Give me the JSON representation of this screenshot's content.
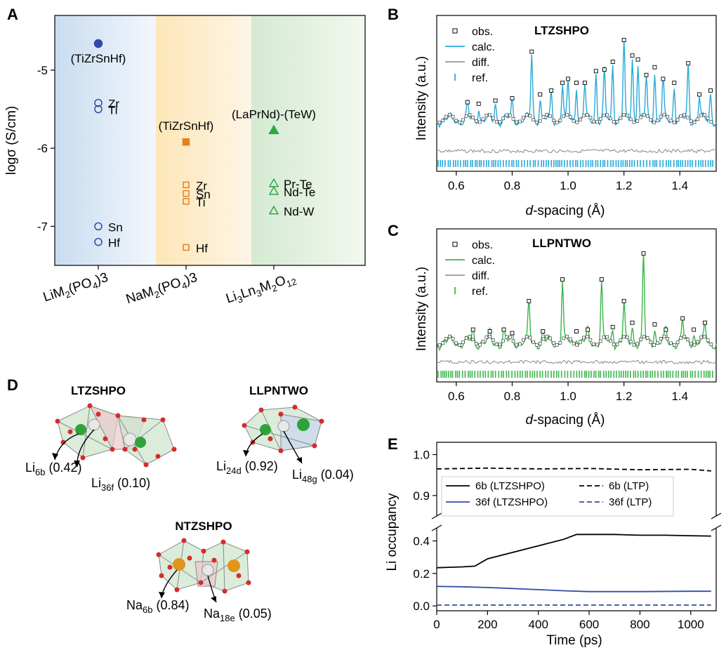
{
  "panel_letters": {
    "a": "A",
    "b": "B",
    "c": "C",
    "d": "D",
    "e": "E"
  },
  "colors": {
    "blue": "#2f4da6",
    "orange": "#e87f1f",
    "green": "#2ca845",
    "cyan": "#27a9d8",
    "lightgreen": "#3bb54a",
    "gray": "#8c8c8c",
    "red": "#d83a3a"
  },
  "chart_data": [
    {
      "panel": "A",
      "type": "scatter",
      "ylabel": "logσ (S/cm)",
      "yticks": [
        "-5",
        "-6",
        "-7"
      ],
      "ylim": [
        -7.5,
        -4.3
      ],
      "categories": [
        "LiM2(PO4)3",
        "NaM2(PO4)3",
        "Li3Ln3M2O12"
      ],
      "category_labels": [
        {
          "main": "LiM",
          "sub1": "2",
          "mid": "(PO",
          "sub2": "4",
          "end": ")3"
        },
        {
          "main": "NaM",
          "sub1": "2",
          "mid": "(PO",
          "sub2": "4",
          "end": ")3"
        },
        {
          "main": "Li",
          "sub1": "3",
          "mid": "Ln",
          "sub2": "3",
          "mid2": "M",
          "sub3": "2",
          "mid3": "O",
          "sub4": "12"
        }
      ],
      "points": [
        {
          "category": 0,
          "value": -4.66,
          "label": "(TiZrSnHf)",
          "filled": true,
          "series": "Li"
        },
        {
          "category": 0,
          "value": -5.42,
          "label": "Zr",
          "filled": false,
          "series": "Li"
        },
        {
          "category": 0,
          "value": -5.5,
          "label": "Ti",
          "filled": false,
          "series": "Li"
        },
        {
          "category": 0,
          "value": -7.0,
          "label": "Sn",
          "filled": false,
          "series": "Li"
        },
        {
          "category": 0,
          "value": -7.2,
          "label": "Hf",
          "filled": false,
          "series": "Li"
        },
        {
          "category": 1,
          "value": -5.92,
          "label": "(TiZrSnHf)",
          "filled": true,
          "series": "Na"
        },
        {
          "category": 1,
          "value": -6.47,
          "label": "Zr",
          "filled": false,
          "series": "Na"
        },
        {
          "category": 1,
          "value": -6.58,
          "label": "Sn",
          "filled": false,
          "series": "Na"
        },
        {
          "category": 1,
          "value": -6.68,
          "label": "Ti",
          "filled": false,
          "series": "Na"
        },
        {
          "category": 1,
          "value": -7.27,
          "label": "Hf",
          "filled": false,
          "series": "Na"
        },
        {
          "category": 2,
          "value": -5.77,
          "label": "(LaPrNd)-(TeW)",
          "filled": true,
          "series": "garnet"
        },
        {
          "category": 2,
          "value": -6.45,
          "label": "Pr-Te",
          "filled": false,
          "series": "garnet"
        },
        {
          "category": 2,
          "value": -6.55,
          "label": "Nd-Te",
          "filled": false,
          "series": "garnet"
        },
        {
          "category": 2,
          "value": -6.8,
          "label": "Nd-W",
          "filled": false,
          "series": "garnet"
        }
      ]
    },
    {
      "panel": "B",
      "type": "line",
      "title": "LTZSHPO",
      "xlabel_italic": "d",
      "xlabel_rest": "-spacing (Å)",
      "ylabel": "Intensity (a.u.)",
      "xlim": [
        0.53,
        1.53
      ],
      "xticks": [
        "0.6",
        "0.8",
        "1.0",
        "1.2",
        "1.4"
      ],
      "legend": [
        "obs.",
        "calc.",
        "diff.",
        "ref."
      ],
      "peaks": [
        [
          0.64,
          0.2
        ],
        [
          0.68,
          0.18
        ],
        [
          0.74,
          0.22
        ],
        [
          0.8,
          0.25
        ],
        [
          0.87,
          0.85
        ],
        [
          0.9,
          0.3
        ],
        [
          0.94,
          0.35
        ],
        [
          0.98,
          0.45
        ],
        [
          1.0,
          0.5
        ],
        [
          1.03,
          0.45
        ],
        [
          1.06,
          0.45
        ],
        [
          1.1,
          0.6
        ],
        [
          1.13,
          0.62
        ],
        [
          1.16,
          0.72
        ],
        [
          1.2,
          1.0
        ],
        [
          1.23,
          0.8
        ],
        [
          1.25,
          0.75
        ],
        [
          1.28,
          0.55
        ],
        [
          1.31,
          0.65
        ],
        [
          1.34,
          0.5
        ],
        [
          1.38,
          0.45
        ],
        [
          1.43,
          0.7
        ],
        [
          1.47,
          0.3
        ],
        [
          1.51,
          0.35
        ]
      ]
    },
    {
      "panel": "C",
      "type": "line",
      "title": "LLPNTWO",
      "xlabel_italic": "d",
      "xlabel_rest": "-spacing (Å)",
      "ylabel": "Intensity (a.u.)",
      "xlim": [
        0.53,
        1.53
      ],
      "xticks": [
        "0.6",
        "0.8",
        "1.0",
        "1.2",
        "1.4"
      ],
      "legend": [
        "obs.",
        "calc.",
        "diff.",
        "ref."
      ],
      "peaks": [
        [
          0.66,
          0.12
        ],
        [
          0.72,
          0.1
        ],
        [
          0.77,
          0.12
        ],
        [
          0.8,
          0.08
        ],
        [
          0.86,
          0.45
        ],
        [
          0.91,
          0.1
        ],
        [
          0.98,
          0.7
        ],
        [
          1.03,
          0.1
        ],
        [
          1.07,
          0.12
        ],
        [
          1.12,
          0.7
        ],
        [
          1.16,
          0.15
        ],
        [
          1.2,
          0.45
        ],
        [
          1.23,
          0.2
        ],
        [
          1.27,
          1.0
        ],
        [
          1.31,
          0.18
        ],
        [
          1.35,
          0.12
        ],
        [
          1.41,
          0.25
        ],
        [
          1.45,
          0.12
        ],
        [
          1.49,
          0.2
        ]
      ]
    },
    {
      "panel": "E",
      "type": "line",
      "xlabel": "Time (ps)",
      "ylabel": "Li occupancy",
      "xlim": [
        0,
        1100
      ],
      "xticks": [
        "0",
        "200",
        "400",
        "600",
        "800",
        "1000"
      ],
      "yticks_upper": [
        "1.0",
        "0.9"
      ],
      "yticks_lower": [
        "0.4",
        "0.2",
        "0.0"
      ],
      "series": [
        {
          "name": "6b (LTZSHPO)",
          "style": "solid",
          "color": "#000000",
          "x": [
            0,
            100,
            150,
            200,
            300,
            400,
            500,
            550,
            600,
            700,
            800,
            900,
            1000,
            1080
          ],
          "y": [
            0.235,
            0.24,
            0.245,
            0.29,
            0.33,
            0.37,
            0.41,
            0.44,
            0.44,
            0.44,
            0.435,
            0.435,
            0.432,
            0.43
          ]
        },
        {
          "name": "36f (LTZSHPO)",
          "style": "solid",
          "color": "#2f4da6",
          "x": [
            0,
            100,
            200,
            300,
            400,
            500,
            600,
            800,
            1000,
            1080
          ],
          "y": [
            0.12,
            0.118,
            0.113,
            0.107,
            0.1,
            0.093,
            0.088,
            0.088,
            0.09,
            0.09
          ]
        },
        {
          "name": "6b (LTP)",
          "style": "dashed",
          "color": "#000000",
          "x": [
            0,
            200,
            400,
            600,
            800,
            1000,
            1080
          ],
          "y": [
            0.965,
            0.967,
            0.965,
            0.966,
            0.963,
            0.964,
            0.96
          ]
        },
        {
          "name": "36f (LTP)",
          "style": "dashed",
          "color": "#2f4da6",
          "x": [
            0,
            1080
          ],
          "y": [
            0.005,
            0.005
          ]
        }
      ]
    }
  ],
  "panel_d": {
    "ltzshpo_title": "LTZSHPO",
    "llpntwo_title": "LLPNTWO",
    "ntzshpo_title": "NTZSHPO",
    "sites": [
      {
        "main": "Li",
        "sub": "6b",
        "value": " (0.42)"
      },
      {
        "main": "Li",
        "sub": "36f",
        "value": " (0.10)"
      },
      {
        "main": "Li",
        "sub": "24d",
        "value": " (0.92)"
      },
      {
        "main": "Li",
        "sub": "48g",
        "value": " (0.04)"
      },
      {
        "main": "Na",
        "sub": "6b",
        "value": " (0.84)"
      },
      {
        "main": "Na",
        "sub": "18e",
        "value": " (0.05)"
      }
    ]
  }
}
